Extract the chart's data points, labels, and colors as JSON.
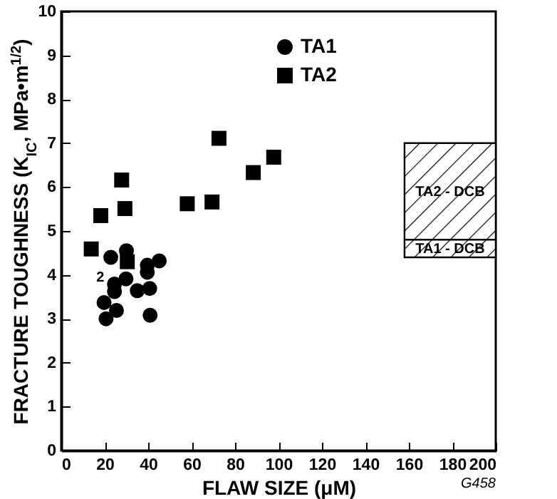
{
  "chart_data": {
    "type": "scatter",
    "xlabel": "FLAW SIZE (μM)",
    "ylabel": "FRACTURE TOUGHNESS (K$_{IC}$, MPa•m$^{1/2}$)",
    "xlim": [
      0,
      200
    ],
    "xticks": [
      0,
      20,
      40,
      60,
      80,
      100,
      120,
      140,
      160,
      180,
      200
    ],
    "ylim": [
      0,
      10
    ],
    "yticks": [
      0,
      1,
      2,
      3,
      4,
      5,
      6,
      7,
      8,
      9,
      10
    ],
    "grid": false,
    "legend": "top",
    "series": [
      {
        "name": "TA1",
        "color": "#000000",
        "marker": "circle",
        "x": [
          22.8,
          30.0,
          19.7,
          20.6,
          25.4,
          24.5,
          24.5,
          29.8,
          35.0,
          39.6,
          39.6,
          40.7,
          40.9,
          45.1
        ],
        "values": [
          4.4,
          4.55,
          3.37,
          3.0,
          3.19,
          3.79,
          3.62,
          3.91,
          3.64,
          4.22,
          4.06,
          3.69,
          3.08,
          4.32
        ]
      },
      {
        "name": "TA2",
        "color": "#000000",
        "marker": "square",
        "x": [
          13.8,
          18.2,
          27.8,
          29.3,
          30.4,
          58.0,
          69.4,
          72.6,
          88.4,
          97.8
        ],
        "values": [
          4.59,
          5.35,
          6.16,
          5.51,
          4.3,
          5.62,
          5.66,
          7.11,
          6.33,
          6.68
        ]
      },
      {
        "name": "TA2 - DCB",
        "type": "bar",
        "color": "#000000",
        "x": [
          179
        ],
        "values": [
          2.2
        ],
        "base": [
          4.8
        ]
      },
      {
        "name": "TA1 - DCB",
        "type": "bar",
        "color": "#000000",
        "x": [
          179
        ],
        "values": [
          0.4
        ],
        "base": [
          4.4
        ]
      }
    ],
    "annotations": [
      {
        "text": "2",
        "x": 24.5,
        "y": 3.79
      },
      "G458"
    ]
  }
}
